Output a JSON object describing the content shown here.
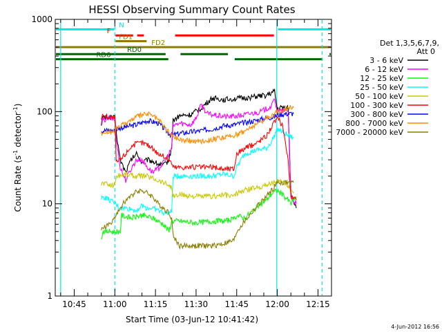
{
  "chart_data": {
    "type": "line",
    "title": "HESSI Observing Summary Count Rates",
    "xlabel": "Start Time (03-Jun-12 10:41:42)",
    "ylabel_main": "Count Rate (s",
    "ylabel_sup": "-1",
    "ylabel_mid": " detector",
    "ylabel_sup2": "-1",
    "ylabel_end": ")",
    "yscale": "log",
    "xlim_minutes": [
      38,
      140
    ],
    "ylim": [
      1,
      1000
    ],
    "x_ticks": [
      {
        "label": "10:45",
        "m": 45
      },
      {
        "label": "11:00",
        "m": 60
      },
      {
        "label": "11:15",
        "m": 75
      },
      {
        "label": "11:30",
        "m": 90
      },
      {
        "label": "11:45",
        "m": 105
      },
      {
        "label": "12:00",
        "m": 120
      },
      {
        "label": "12:15",
        "m": 135
      }
    ],
    "y_ticks": [
      {
        "label": "1",
        "v": 1
      },
      {
        "label": "10",
        "v": 10
      },
      {
        "label": "100",
        "v": 100
      },
      {
        "label": "1000",
        "v": 1000
      }
    ],
    "legend_header": [
      "Det 1,3,5,6,7,9,",
      "Att 0"
    ],
    "series": [
      {
        "name": "3 - 6 keV",
        "color": "#000000",
        "points": [
          [
            55,
            75
          ],
          [
            55.5,
            85
          ],
          [
            58,
            88
          ],
          [
            60,
            85
          ],
          [
            60.5,
            60
          ],
          [
            62,
            30
          ],
          [
            64,
            22
          ],
          [
            66,
            30
          ],
          [
            68,
            35
          ],
          [
            70,
            28
          ],
          [
            72,
            30
          ],
          [
            74,
            29
          ],
          [
            76,
            27
          ],
          [
            78,
            26
          ],
          [
            80,
            30
          ],
          [
            81,
            42
          ],
          [
            81.5,
            80
          ],
          [
            84,
            90
          ],
          [
            88,
            92
          ],
          [
            92,
            110
          ],
          [
            96,
            140
          ],
          [
            100,
            135
          ],
          [
            104,
            138
          ],
          [
            108,
            140
          ],
          [
            112,
            145
          ],
          [
            116,
            150
          ],
          [
            119,
            165
          ],
          [
            120,
            105
          ],
          [
            121,
            110
          ],
          [
            124,
            110
          ],
          [
            125,
            13
          ],
          [
            127,
            9
          ]
        ]
      },
      {
        "name": "6 - 12 keV",
        "color": "#ff00ff",
        "points": [
          [
            55,
            70
          ],
          [
            55.5,
            80
          ],
          [
            58,
            85
          ],
          [
            60,
            82
          ],
          [
            60.5,
            50
          ],
          [
            62,
            25
          ],
          [
            64,
            18
          ],
          [
            66,
            24
          ],
          [
            68,
            30
          ],
          [
            70,
            30
          ],
          [
            72,
            25
          ],
          [
            74,
            22
          ],
          [
            76,
            24
          ],
          [
            78,
            28
          ],
          [
            80,
            35
          ],
          [
            81,
            40
          ],
          [
            81.5,
            70
          ],
          [
            84,
            75
          ],
          [
            88,
            72
          ],
          [
            90,
            85
          ],
          [
            92,
            120
          ],
          [
            94,
            95
          ],
          [
            98,
            90
          ],
          [
            102,
            88
          ],
          [
            106,
            90
          ],
          [
            110,
            95
          ],
          [
            114,
            100
          ],
          [
            118,
            115
          ],
          [
            119,
            140
          ],
          [
            120,
            100
          ],
          [
            124,
            102
          ],
          [
            125,
            12
          ],
          [
            127,
            10
          ]
        ]
      },
      {
        "name": "12 - 25 keV",
        "color": "#00ff00",
        "points": [
          [
            55,
            4
          ],
          [
            55.5,
            5
          ],
          [
            58,
            5
          ],
          [
            62,
            5
          ],
          [
            62.5,
            7.5
          ],
          [
            66,
            7
          ],
          [
            70,
            7.5
          ],
          [
            74,
            7
          ],
          [
            78,
            6
          ],
          [
            80,
            5
          ],
          [
            81,
            6.5
          ],
          [
            84,
            6.5
          ],
          [
            90,
            6.2
          ],
          [
            96,
            6.5
          ],
          [
            100,
            6.5
          ],
          [
            104,
            6.8
          ],
          [
            105,
            7.5
          ],
          [
            108,
            7
          ],
          [
            112,
            9
          ],
          [
            116,
            11
          ],
          [
            118,
            13
          ],
          [
            120,
            14
          ],
          [
            124,
            11
          ],
          [
            125,
            10
          ],
          [
            127,
            12
          ]
        ]
      },
      {
        "name": "25 - 50 keV",
        "color": "#00ffff",
        "points": [
          [
            55,
            11
          ],
          [
            55.5,
            12
          ],
          [
            58,
            11
          ],
          [
            60,
            10
          ],
          [
            62,
            9
          ],
          [
            64,
            9
          ],
          [
            68,
            8.5
          ],
          [
            70,
            9.5
          ],
          [
            72,
            9
          ],
          [
            74,
            9
          ],
          [
            76,
            8.5
          ],
          [
            78,
            8
          ],
          [
            80,
            8
          ],
          [
            81,
            8
          ],
          [
            81.5,
            20
          ],
          [
            84,
            20
          ],
          [
            90,
            20
          ],
          [
            96,
            20
          ],
          [
            100,
            21
          ],
          [
            104,
            20
          ],
          [
            105,
            25
          ],
          [
            108,
            35
          ],
          [
            112,
            38
          ],
          [
            116,
            40
          ],
          [
            118,
            48
          ],
          [
            120,
            65
          ],
          [
            122,
            60
          ],
          [
            124,
            55
          ],
          [
            126,
            52
          ]
        ]
      },
      {
        "name": "50 - 100 keV",
        "color": "#c8c800",
        "points": [
          [
            55,
            16
          ],
          [
            55.5,
            17
          ],
          [
            58,
            16
          ],
          [
            60,
            16
          ],
          [
            60.5,
            20
          ],
          [
            64,
            21
          ],
          [
            68,
            20
          ],
          [
            72,
            20
          ],
          [
            74,
            19
          ],
          [
            76,
            18
          ],
          [
            78,
            17
          ],
          [
            80,
            16
          ],
          [
            81,
            15
          ],
          [
            81.5,
            12
          ],
          [
            84,
            12.5
          ],
          [
            90,
            12
          ],
          [
            96,
            12
          ],
          [
            100,
            12.5
          ],
          [
            104,
            12
          ],
          [
            105,
            13
          ],
          [
            108,
            14
          ],
          [
            112,
            15
          ],
          [
            116,
            16
          ],
          [
            118,
            17
          ],
          [
            120,
            17.5
          ],
          [
            124,
            16
          ],
          [
            126,
            13
          ]
        ]
      },
      {
        "name": "100 - 300 keV",
        "color": "#ff0000",
        "points": [
          [
            55,
            85
          ],
          [
            55.5,
            90
          ],
          [
            58,
            88
          ],
          [
            60,
            85
          ],
          [
            60.5,
            28
          ],
          [
            62,
            30
          ],
          [
            64,
            35
          ],
          [
            66,
            42
          ],
          [
            68,
            45
          ],
          [
            70,
            46
          ],
          [
            72,
            44
          ],
          [
            74,
            40
          ],
          [
            76,
            35
          ],
          [
            78,
            33
          ],
          [
            80,
            30
          ],
          [
            81,
            28
          ],
          [
            81.5,
            25
          ],
          [
            84,
            25
          ],
          [
            88,
            25
          ],
          [
            92,
            25
          ],
          [
            96,
            25
          ],
          [
            100,
            24
          ],
          [
            104,
            24
          ],
          [
            105,
            35
          ],
          [
            108,
            40
          ],
          [
            112,
            45
          ],
          [
            116,
            55
          ],
          [
            118,
            70
          ],
          [
            120,
            85
          ],
          [
            122,
            70
          ],
          [
            124,
            30
          ],
          [
            125,
            12
          ],
          [
            127,
            11
          ]
        ]
      },
      {
        "name": "300 - 800 keV",
        "color": "#0000ff",
        "points": [
          [
            55,
            62
          ],
          [
            55.5,
            62
          ],
          [
            58,
            63
          ],
          [
            60,
            62
          ],
          [
            60.5,
            65
          ],
          [
            64,
            68
          ],
          [
            68,
            72
          ],
          [
            72,
            80
          ],
          [
            76,
            75
          ],
          [
            78,
            66
          ],
          [
            80,
            58
          ],
          [
            81,
            55
          ],
          [
            84,
            58
          ],
          [
            88,
            60
          ],
          [
            92,
            62
          ],
          [
            96,
            65
          ],
          [
            100,
            70
          ],
          [
            104,
            72
          ],
          [
            108,
            76
          ],
          [
            112,
            80
          ],
          [
            116,
            85
          ],
          [
            119,
            88
          ],
          [
            120,
            92
          ],
          [
            124,
            95
          ],
          [
            126,
            95
          ]
        ]
      },
      {
        "name": "800 - 7000 keV",
        "color": "#ff8c00",
        "points": [
          [
            55,
            58
          ],
          [
            55.5,
            60
          ],
          [
            58,
            60
          ],
          [
            60,
            60
          ],
          [
            60.5,
            65
          ],
          [
            64,
            75
          ],
          [
            68,
            88
          ],
          [
            72,
            95
          ],
          [
            74,
            90
          ],
          [
            76,
            82
          ],
          [
            78,
            70
          ],
          [
            80,
            60
          ],
          [
            81,
            55
          ],
          [
            84,
            50
          ],
          [
            88,
            48
          ],
          [
            92,
            48
          ],
          [
            96,
            50
          ],
          [
            100,
            52
          ],
          [
            104,
            55
          ],
          [
            108,
            62
          ],
          [
            112,
            72
          ],
          [
            116,
            85
          ],
          [
            119,
            95
          ],
          [
            120,
            100
          ],
          [
            124,
            110
          ],
          [
            126,
            110
          ]
        ]
      },
      {
        "name": "7000 - 20000 keV",
        "color": "#8b7d00",
        "points": [
          [
            55,
            5
          ],
          [
            55.5,
            5.5
          ],
          [
            58,
            6
          ],
          [
            60,
            7
          ],
          [
            62,
            9
          ],
          [
            64,
            11
          ],
          [
            66,
            12
          ],
          [
            68,
            14
          ],
          [
            70,
            14
          ],
          [
            72,
            13
          ],
          [
            74,
            12
          ],
          [
            76,
            10
          ],
          [
            78,
            9
          ],
          [
            80,
            8
          ],
          [
            81,
            7
          ],
          [
            81.5,
            4.5
          ],
          [
            84,
            3.5
          ],
          [
            90,
            3.5
          ],
          [
            96,
            3.5
          ],
          [
            100,
            3.7
          ],
          [
            104,
            4
          ],
          [
            105,
            5
          ],
          [
            108,
            6.5
          ],
          [
            112,
            9
          ],
          [
            116,
            12
          ],
          [
            118,
            14
          ],
          [
            120,
            17
          ],
          [
            124,
            17
          ],
          [
            126,
            17
          ]
        ]
      }
    ],
    "flag_bars": [
      {
        "label": "N",
        "color": "#00e5e5",
        "level": 780,
        "segments": [
          [
            38,
            60
          ],
          [
            120,
            140
          ]
        ],
        "label_m": 61,
        "label_side": "right"
      },
      {
        "label": "F",
        "color": "#ff0000",
        "level": 670,
        "segments": [
          [
            60,
            67
          ],
          [
            68,
            71
          ],
          [
            82,
            119
          ]
        ],
        "label_m": 59,
        "label_side": "left"
      },
      {
        "label": "FD1",
        "color": "#8b7d00",
        "level": 580,
        "segments": [
          [
            60,
            72
          ]
        ],
        "label_m": 61,
        "label_side": "right"
      },
      {
        "label": "FD2",
        "color": "#8b7d00",
        "level": 500,
        "segments": [
          [
            38,
            140
          ]
        ],
        "label_m": 73,
        "label_side": "right"
      },
      {
        "label": "RD0",
        "color": "#006400",
        "level": 420,
        "segments": [
          [
            38,
            79
          ],
          [
            84,
            102
          ],
          [
            139,
            140
          ]
        ],
        "label_m": 64,
        "label_side": "right"
      },
      {
        "label": "RD6",
        "color": "#006400",
        "level": 370,
        "segments": [
          [
            38,
            80
          ],
          [
            104,
            137
          ]
        ],
        "label_m": 59,
        "label_side": "left"
      }
    ],
    "vlines": [
      {
        "m": 40,
        "style": "solid",
        "color": "#00e5e5"
      },
      {
        "m": 60,
        "style": "dashed",
        "color": "#00e5e5"
      },
      {
        "m": 119.8,
        "style": "solid",
        "color": "#00e5e5"
      },
      {
        "m": 136.5,
        "style": "dashed",
        "color": "#00e5e5"
      }
    ],
    "grid": false,
    "legend_position": "right"
  },
  "timestamp": "4-Jun-2012 16:56"
}
